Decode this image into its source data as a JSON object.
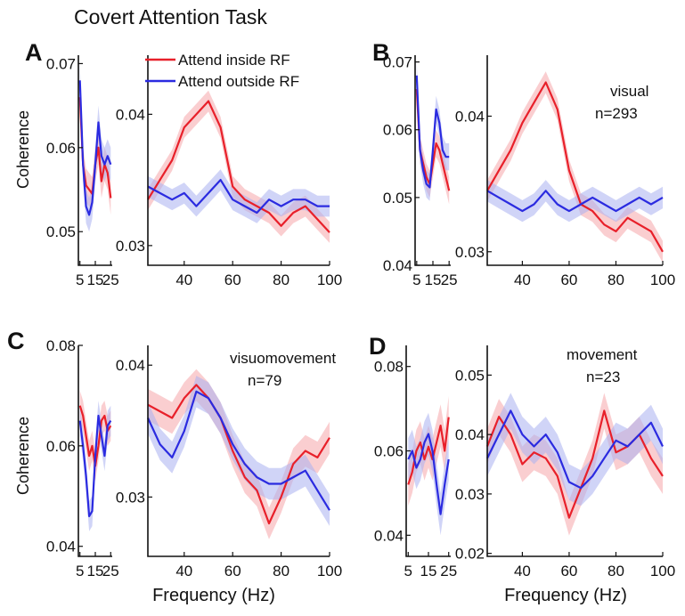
{
  "figure": {
    "title": "Covert Attention Task",
    "ylabel": "Coherence",
    "xlabel": "Frequency (Hz)"
  },
  "colors": {
    "attend_inside": "#e8202a",
    "attend_inside_band": "#f5a6aa",
    "attend_outside": "#2b2be0",
    "attend_outside_band": "#aab0f0"
  },
  "chart_data": [
    {
      "type": "line",
      "panel": "A",
      "annotation": [],
      "legend": {
        "position": "top",
        "entries": [
          "Attend inside RF",
          "Attend outside RF"
        ]
      },
      "ylabel": "Coherence",
      "low": {
        "xlim": [
          4,
          26
        ],
        "ylim": [
          0.046,
          0.071
        ],
        "xticks": [
          5,
          15,
          25
        ],
        "xtick_labels": [
          "5",
          "15",
          "25"
        ],
        "yticks": [
          0.05,
          0.06,
          0.07
        ],
        "ytick_labels": [
          "0.05",
          "0.06",
          "0.07"
        ],
        "x": [
          5,
          7,
          9,
          11,
          13,
          15,
          17,
          19,
          21,
          23,
          25
        ],
        "series": [
          {
            "name": "Attend inside RF",
            "values": [
              0.066,
              0.058,
              0.0555,
              0.055,
              0.0545,
              0.058,
              0.06,
              0.056,
              0.058,
              0.057,
              0.054
            ],
            "band": 0.002
          },
          {
            "name": "Attend outside RF",
            "values": [
              0.068,
              0.058,
              0.053,
              0.052,
              0.0535,
              0.058,
              0.063,
              0.059,
              0.058,
              0.059,
              0.058
            ],
            "band": 0.002
          }
        ]
      },
      "high": {
        "xlim": [
          25,
          100
        ],
        "ylim": [
          0.0285,
          0.0445
        ],
        "xticks": [
          40,
          60,
          80,
          100
        ],
        "xtick_labels": [
          "40",
          "60",
          "80",
          "100"
        ],
        "yticks": [
          0.03,
          0.04
        ],
        "ytick_labels": [
          "0.03",
          "0.04"
        ],
        "x": [
          25,
          30,
          35,
          40,
          45,
          50,
          55,
          60,
          65,
          70,
          75,
          80,
          85,
          90,
          95,
          100
        ],
        "series": [
          {
            "name": "Attend inside RF",
            "values": [
              0.0335,
              0.035,
              0.0365,
              0.039,
              0.04,
              0.041,
              0.039,
              0.0345,
              0.0335,
              0.033,
              0.0325,
              0.0315,
              0.0325,
              0.033,
              0.032,
              0.031
            ],
            "band": 0.0008
          },
          {
            "name": "Attend outside RF",
            "values": [
              0.0345,
              0.034,
              0.0335,
              0.034,
              0.033,
              0.034,
              0.035,
              0.0335,
              0.033,
              0.0325,
              0.0335,
              0.033,
              0.0335,
              0.0335,
              0.033,
              0.033
            ],
            "band": 0.0008
          }
        ]
      }
    },
    {
      "type": "line",
      "panel": "B",
      "annotation": [
        "visual",
        "n=293"
      ],
      "low": {
        "xlim": [
          4,
          26
        ],
        "ylim": [
          0.04,
          0.071
        ],
        "xticks": [
          5,
          15,
          25
        ],
        "xtick_labels": [
          "5",
          "15",
          "25"
        ],
        "yticks": [
          0.04,
          0.05,
          0.06,
          0.07
        ],
        "ytick_labels": [
          "0.04",
          "0.05",
          "0.06",
          "0.07"
        ],
        "x": [
          5,
          7,
          9,
          11,
          13,
          15,
          17,
          19,
          21,
          23,
          25
        ],
        "series": [
          {
            "name": "Attend inside RF",
            "values": [
              0.066,
              0.057,
              0.055,
              0.053,
              0.052,
              0.055,
              0.058,
              0.057,
              0.055,
              0.053,
              0.051
            ],
            "band": 0.002
          },
          {
            "name": "Attend outside RF",
            "values": [
              0.068,
              0.057,
              0.054,
              0.052,
              0.0515,
              0.057,
              0.063,
              0.061,
              0.057,
              0.056,
              0.056
            ],
            "band": 0.002
          }
        ]
      },
      "high": {
        "xlim": [
          25,
          100
        ],
        "ylim": [
          0.029,
          0.0445
        ],
        "xticks": [
          40,
          60,
          80,
          100
        ],
        "xtick_labels": [
          "40",
          "60",
          "80",
          "100"
        ],
        "yticks": [
          0.03,
          0.04
        ],
        "ytick_labels": [
          "0.03",
          "0.04"
        ],
        "x": [
          25,
          30,
          35,
          40,
          45,
          50,
          55,
          60,
          65,
          70,
          75,
          80,
          85,
          90,
          95,
          100
        ],
        "series": [
          {
            "name": "Attend inside RF",
            "values": [
              0.0345,
              0.036,
              0.0375,
              0.0395,
              0.041,
              0.0425,
              0.0405,
              0.036,
              0.0335,
              0.033,
              0.032,
              0.0315,
              0.0325,
              0.032,
              0.0315,
              0.03
            ],
            "band": 0.0008
          },
          {
            "name": "Attend outside RF",
            "values": [
              0.0345,
              0.034,
              0.0335,
              0.033,
              0.0335,
              0.0345,
              0.0335,
              0.033,
              0.0335,
              0.034,
              0.0335,
              0.033,
              0.0335,
              0.034,
              0.0335,
              0.034
            ],
            "band": 0.0008
          }
        ]
      }
    },
    {
      "type": "line",
      "panel": "C",
      "annotation": [
        "visuomovement",
        "n=79"
      ],
      "low": {
        "xlim": [
          4,
          26
        ],
        "ylim": [
          0.038,
          0.08
        ],
        "xticks": [
          5,
          15,
          25
        ],
        "xtick_labels": [
          "5",
          "15",
          "25"
        ],
        "yticks": [
          0.04,
          0.06,
          0.08
        ],
        "ytick_labels": [
          "0.04",
          "0.06",
          "0.08"
        ],
        "x": [
          5,
          7,
          9,
          11,
          13,
          15,
          17,
          19,
          21,
          23,
          25
        ],
        "series": [
          {
            "name": "Attend inside RF",
            "values": [
              0.068,
              0.066,
              0.062,
              0.058,
              0.06,
              0.056,
              0.06,
              0.065,
              0.066,
              0.063,
              0.064
            ],
            "band": 0.003
          },
          {
            "name": "Attend outside RF",
            "values": [
              0.065,
              0.06,
              0.054,
              0.046,
              0.047,
              0.058,
              0.066,
              0.062,
              0.058,
              0.064,
              0.065
            ],
            "band": 0.003
          }
        ]
      },
      "high": {
        "xlim": [
          25,
          100
        ],
        "ylim": [
          0.0255,
          0.0415
        ],
        "xticks": [
          40,
          60,
          80,
          100
        ],
        "xtick_labels": [
          "40",
          "60",
          "80",
          "100"
        ],
        "yticks": [
          0.03,
          0.04
        ],
        "ytick_labels": [
          "0.03",
          "0.04"
        ],
        "x": [
          25,
          30,
          35,
          40,
          45,
          50,
          55,
          60,
          65,
          70,
          75,
          80,
          85,
          90,
          95,
          100
        ],
        "series": [
          {
            "name": "Attend inside RF",
            "values": [
              0.037,
              0.0365,
              0.036,
              0.0375,
              0.0385,
              0.0375,
              0.036,
              0.0335,
              0.0315,
              0.0305,
              0.028,
              0.03,
              0.0325,
              0.0335,
              0.033,
              0.0345
            ],
            "band": 0.0012
          },
          {
            "name": "Attend outside RF",
            "values": [
              0.036,
              0.034,
              0.033,
              0.035,
              0.038,
              0.0375,
              0.036,
              0.034,
              0.0325,
              0.0315,
              0.031,
              0.031,
              0.0315,
              0.032,
              0.0305,
              0.029
            ],
            "band": 0.0012
          }
        ]
      }
    },
    {
      "type": "line",
      "panel": "D",
      "annotation": [
        "movement",
        "n=23"
      ],
      "low": {
        "xlim": [
          4,
          26
        ],
        "ylim": [
          0.035,
          0.085
        ],
        "xticks": [
          5,
          15,
          25
        ],
        "xtick_labels": [
          "5",
          "15",
          "25"
        ],
        "yticks": [
          0.04,
          0.06,
          0.08
        ],
        "ytick_labels": [
          "0.04",
          "0.06",
          "0.08"
        ],
        "x": [
          5,
          7,
          9,
          11,
          13,
          15,
          17,
          19,
          21,
          23,
          25
        ],
        "series": [
          {
            "name": "Attend inside RF",
            "values": [
              0.052,
              0.055,
              0.06,
              0.062,
              0.058,
              0.061,
              0.058,
              0.062,
              0.066,
              0.06,
              0.068
            ],
            "band": 0.005
          },
          {
            "name": "Attend outside RF",
            "values": [
              0.058,
              0.06,
              0.056,
              0.058,
              0.062,
              0.064,
              0.06,
              0.052,
              0.045,
              0.052,
              0.058
            ],
            "band": 0.005
          }
        ]
      },
      "high": {
        "xlim": [
          25,
          100
        ],
        "ylim": [
          0.0195,
          0.055
        ],
        "xticks": [
          40,
          60,
          80,
          100
        ],
        "xtick_labels": [
          "40",
          "60",
          "80",
          "100"
        ],
        "yticks": [
          0.02,
          0.03,
          0.04,
          0.05
        ],
        "ytick_labels": [
          "0.02",
          "0.03",
          "0.04",
          "0.05"
        ],
        "x": [
          25,
          30,
          35,
          40,
          45,
          50,
          55,
          60,
          65,
          70,
          75,
          80,
          85,
          90,
          95,
          100
        ],
        "series": [
          {
            "name": "Attend inside RF",
            "values": [
              0.038,
              0.043,
              0.04,
              0.035,
              0.037,
              0.036,
              0.033,
              0.026,
              0.031,
              0.036,
              0.044,
              0.037,
              0.038,
              0.04,
              0.036,
              0.033
            ],
            "band": 0.003
          },
          {
            "name": "Attend outside RF",
            "values": [
              0.036,
              0.04,
              0.044,
              0.04,
              0.038,
              0.04,
              0.037,
              0.032,
              0.031,
              0.033,
              0.036,
              0.039,
              0.038,
              0.04,
              0.042,
              0.038
            ],
            "band": 0.003
          }
        ]
      }
    }
  ]
}
